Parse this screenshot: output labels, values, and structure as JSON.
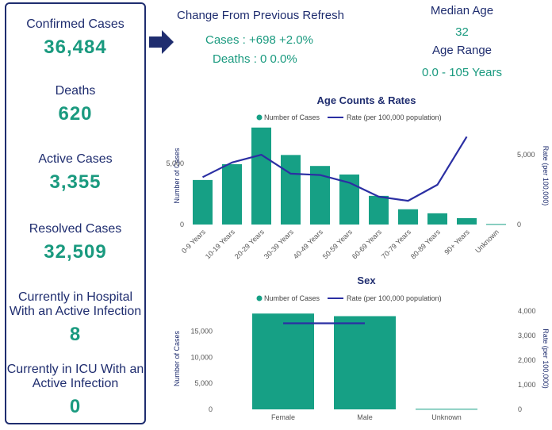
{
  "stats": [
    {
      "label": "Confirmed Cases",
      "value": "36,484"
    },
    {
      "label": "Deaths",
      "value": "620"
    },
    {
      "label": "Active Cases",
      "value": "3,355"
    },
    {
      "label": "Resolved Cases",
      "value": "32,509"
    },
    {
      "label": "Currently in Hospital With an Active Infection",
      "value": "8"
    },
    {
      "label": "Currently in ICU With an Active Infection",
      "value": "0"
    }
  ],
  "change": {
    "title": "Change From Previous Refresh",
    "cases": "Cases : +698 +2.0%",
    "deaths": "Deaths : 0 0.0%"
  },
  "median": {
    "label": "Median Age",
    "value": "32",
    "range_label": "Age Range",
    "range_value": "0.0 - 105 Years"
  },
  "colors": {
    "navy": "#1f2d6f",
    "teal": "#1a9a7f",
    "bar": "#16a085",
    "line": "#2b2fa3"
  },
  "icons": {
    "arrow": "right-arrow-icon"
  },
  "chart_data": [
    {
      "type": "bar",
      "title": "Age Counts & Rates",
      "legend_position": "top",
      "legend_bar": "Number of Cases",
      "legend_line": "Rate (per 100,000 population)",
      "ylabel": "Number of Cases",
      "y2label": "Rate (per 100,000)",
      "ylim": [
        0,
        8000
      ],
      "y2lim": [
        0,
        7000
      ],
      "yticks": [
        "0",
        "5,000"
      ],
      "y2ticks": [
        "0",
        "5,000"
      ],
      "yticks_values": [
        0,
        5000
      ],
      "y2ticks_values": [
        0,
        5000
      ],
      "categories": [
        "0-9 Years",
        "10-19 Years",
        "20-29 Years",
        "30-39 Years",
        "40-49 Years",
        "50-59 Years",
        "60-69 Years",
        "70-79 Years",
        "80-89 Years",
        "90+ Years",
        "Unknown"
      ],
      "series": [
        {
          "name": "Number of Cases",
          "type": "bar",
          "values": [
            3650,
            4950,
            7950,
            5700,
            4800,
            4100,
            2350,
            1250,
            920,
            520,
            40
          ]
        },
        {
          "name": "Rate (per 100,000 population)",
          "type": "line",
          "values": [
            3400,
            4450,
            5000,
            3650,
            3550,
            3000,
            2000,
            1700,
            2850,
            6300,
            null
          ]
        }
      ]
    },
    {
      "type": "bar",
      "title": "Sex",
      "legend_position": "top",
      "legend_bar": "Number of Cases",
      "legend_line": "Rate (per 100,000 population)",
      "ylabel": "Number of Cases",
      "y2label": "Rate (per 100,000)",
      "ylim": [
        0,
        19500
      ],
      "y2lim": [
        0,
        4130
      ],
      "yticks": [
        "0",
        "5,000",
        "10,000",
        "15,000"
      ],
      "y2ticks": [
        "0",
        "1,000",
        "2,000",
        "3,000",
        "4,000"
      ],
      "yticks_values": [
        0,
        5000,
        10000,
        15000
      ],
      "y2ticks_values": [
        0,
        1000,
        2000,
        3000,
        4000
      ],
      "categories": [
        "Female",
        "Male",
        "Unknown"
      ],
      "series": [
        {
          "name": "Number of Cases",
          "type": "bar",
          "values": [
            18400,
            17900,
            100
          ]
        },
        {
          "name": "Rate (per 100,000 population)",
          "type": "line",
          "values": [
            3500,
            3500,
            null
          ]
        }
      ]
    }
  ]
}
